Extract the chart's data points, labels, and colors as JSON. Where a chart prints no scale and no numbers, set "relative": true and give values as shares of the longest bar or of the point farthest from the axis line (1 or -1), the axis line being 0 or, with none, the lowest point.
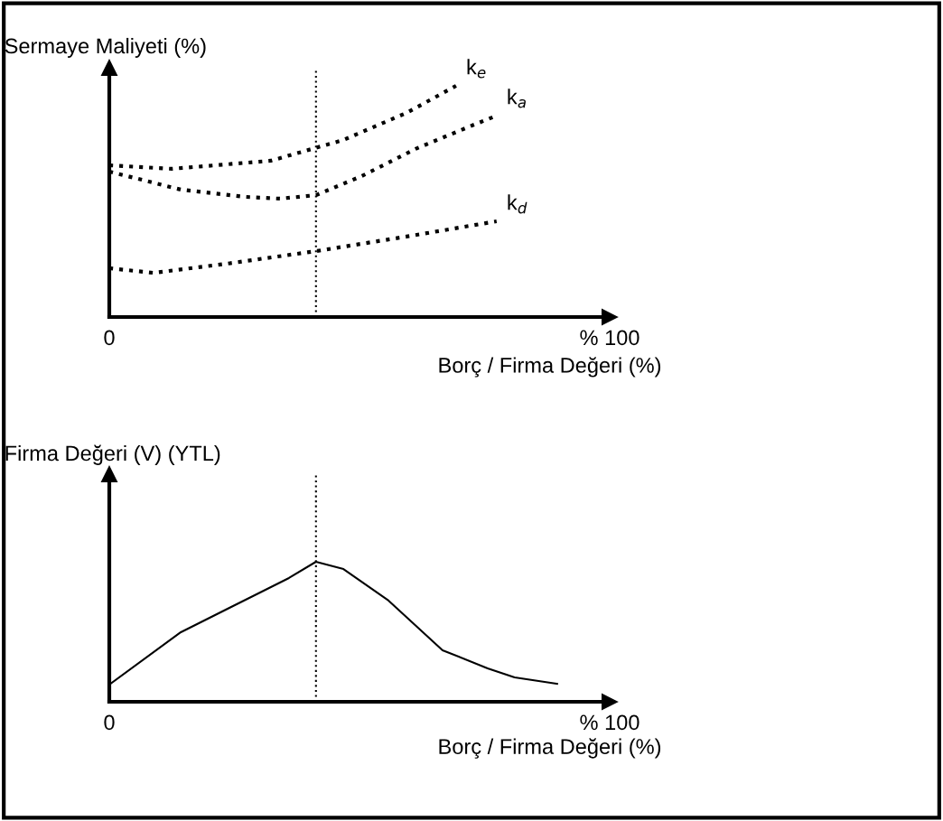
{
  "chart_data": [
    {
      "type": "line",
      "relative": true,
      "ylabel": "Sermaye Maliyeti (%)",
      "xlabel": "Borç / Firma Değeri (%)",
      "xlim": [
        0,
        100
      ],
      "xticks": [
        0,
        {
          "value": 100,
          "label": "% 100"
        }
      ],
      "tick_labels": "x",
      "series": [
        {
          "name": "k$_{e}$",
          "color": "#000000",
          "line_style": "dotted",
          "x": [
            0,
            12.5,
            32.3,
            46.8,
            59.4,
            69.3
          ],
          "values": [
            0.656,
            0.641,
            0.676,
            0.766,
            0.883,
            1.0
          ]
        },
        {
          "name": "k$_{a}$",
          "color": "#000000",
          "line_style": "dotted",
          "x": [
            0,
            14.3,
            26.9,
            34.1,
            41.3,
            50.4,
            61.2,
            72.0,
            77.4
          ],
          "values": [
            0.629,
            0.551,
            0.52,
            0.512,
            0.527,
            0.609,
            0.727,
            0.824,
            0.871
          ]
        },
        {
          "name": "k$_{d}$",
          "color": "#000000",
          "line_style": "dotted",
          "x": [
            0,
            8.8,
            23.3,
            41.3,
            59.4,
            77.4
          ],
          "values": [
            0.211,
            0.191,
            0.23,
            0.285,
            0.348,
            0.414
          ]
        }
      ],
      "ref_lines": [
        {
          "axis": "x",
          "value": 41.3,
          "color": "#000000",
          "line_style": "dotted"
        }
      ]
    },
    {
      "type": "line",
      "relative": true,
      "ylabel": "Firma Değeri (V) (YTL)",
      "xlabel": "Borç / Firma Değeri (%)",
      "xlim": [
        0,
        100
      ],
      "xticks": [
        0,
        {
          "value": 100,
          "label": "% 100"
        }
      ],
      "tick_labels": "x",
      "series": [
        {
          "color": "#000000",
          "line_style": "solid",
          "x": [
            0,
            14.3,
            28.7,
            35.9,
            41.3,
            46.8,
            55.8,
            66.6,
            75.6,
            81.0,
            89.5
          ],
          "values": [
            0.123,
            0.497,
            0.755,
            0.884,
            1.0,
            0.948,
            0.723,
            0.368,
            0.239,
            0.174,
            0.129
          ]
        }
      ],
      "ref_lines": [
        {
          "axis": "x",
          "value": 41.3,
          "color": "#000000",
          "line_style": "dotted"
        }
      ]
    }
  ]
}
